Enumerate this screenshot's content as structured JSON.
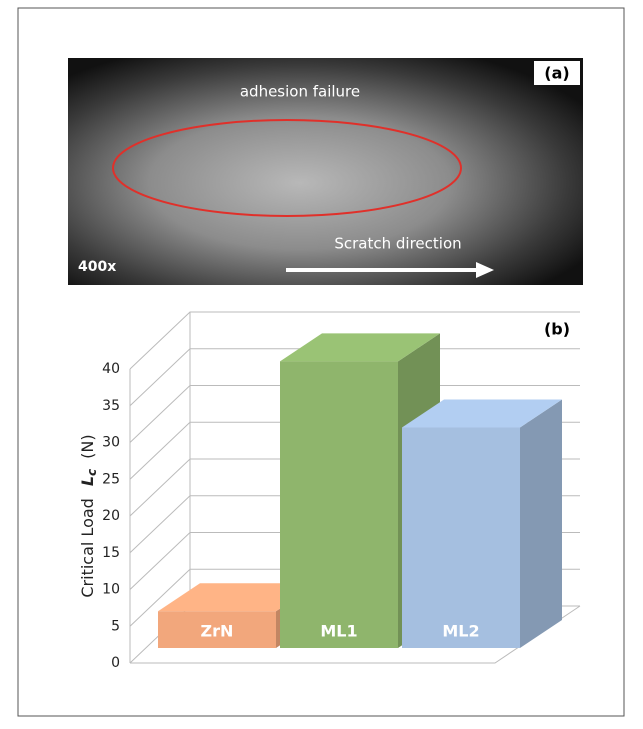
{
  "image_panel": {
    "label": "(a)",
    "annotation": "adhesion failure",
    "direction": "Scratch direction",
    "magnification": "400x"
  },
  "chart_data": {
    "type": "bar",
    "panel_label": "(b)",
    "y_label": {
      "text": "Critical Load",
      "symbol": "L",
      "subscript": "c",
      "unit": "(N)"
    },
    "categories": [
      "ZrN",
      "ML1",
      "ML2"
    ],
    "values": [
      5,
      39,
      30
    ],
    "colors": [
      "#f2a77c",
      "#8fb56c",
      "#a5bfe0"
    ],
    "ylim": [
      0,
      40
    ],
    "yticks": [
      0,
      5,
      10,
      15,
      20,
      25,
      30,
      35,
      40
    ],
    "grid": true
  }
}
